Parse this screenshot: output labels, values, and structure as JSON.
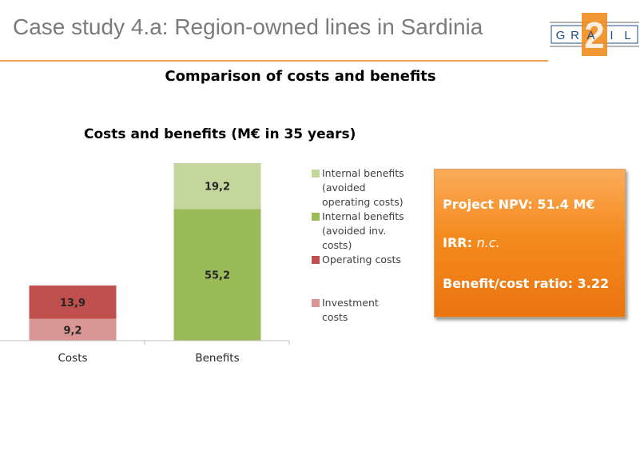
{
  "header": {
    "title": "Case study 4.a: Region-owned lines in Sardinia",
    "logo_text": [
      "G",
      "R",
      "A",
      "I",
      "L"
    ],
    "logo_badge": "2"
  },
  "subtitle": "Comparison of costs and benefits",
  "chart_data": {
    "type": "bar",
    "stacked": true,
    "title": "Costs and benefits (M€ in 35 years)",
    "categories": [
      "Costs",
      "Benefits"
    ],
    "series": [
      {
        "name": "Investment costs",
        "values": [
          9.2,
          0
        ],
        "labels": [
          "9,2",
          ""
        ],
        "color": "#d99694"
      },
      {
        "name": "Operating costs",
        "values": [
          13.9,
          0
        ],
        "labels": [
          "13,9",
          ""
        ],
        "color": "#c0504d"
      },
      {
        "name": "Internal benefits (avoided inv. costs)",
        "values": [
          0,
          55.2
        ],
        "labels": [
          "",
          "55,2"
        ],
        "color": "#9bbb59"
      },
      {
        "name": "Internal benefits (avoided operating costs)",
        "values": [
          0,
          19.2
        ],
        "labels": [
          "",
          "19,2"
        ],
        "color": "#c3d69b"
      }
    ],
    "ylim": [
      0,
      74.4
    ],
    "xlabel": "",
    "ylabel": "",
    "grid": false,
    "legend_position": "right",
    "legend": [
      {
        "lines": [
          "Internal benefits",
          "(avoided",
          "operating costs)"
        ],
        "color": "#c3d69b"
      },
      {
        "lines": [
          "Internal benefits",
          "(avoided inv.",
          "costs)"
        ],
        "color": "#9bbb59"
      },
      {
        "lines": [
          "Operating costs"
        ],
        "color": "#c0504d"
      },
      {
        "lines": [
          "Investment",
          "costs"
        ],
        "color": "#d99694"
      }
    ]
  },
  "results": {
    "npv_label": "Project NPV: 51.4 M€",
    "irr_label": "IRR:",
    "irr_value": "n.c.",
    "bc_label": "Benefit/cost ratio: 3.22"
  },
  "colors": {
    "accent": "#f0a050",
    "box": "#f58b1f",
    "logo_blue": "#1f4e8c",
    "logo_orange": "#f08c1e"
  }
}
